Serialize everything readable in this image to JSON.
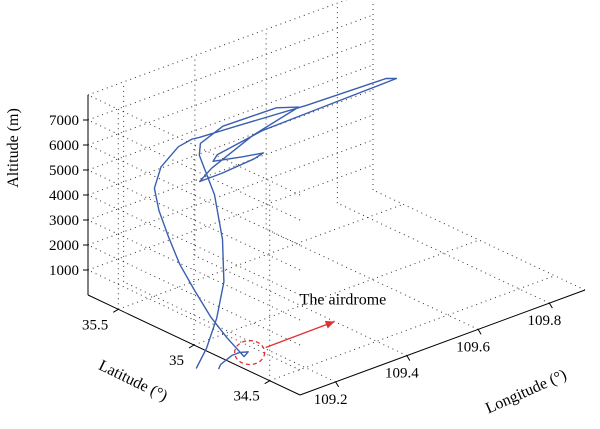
{
  "chart_data": {
    "type": "line",
    "projection": "3d",
    "title": "",
    "xlabel": "Longitude (°)",
    "ylabel": "Latitude (°)",
    "zlabel": "Altitude (m)",
    "x_ticks": [
      "109.2",
      "109.4",
      "109.6",
      "109.8"
    ],
    "y_ticks": [
      "34.5",
      "35",
      "35.5"
    ],
    "z_ticks": [
      "1000",
      "2000",
      "3000",
      "4000",
      "5000",
      "6000",
      "7000"
    ],
    "grid": true,
    "series": [
      {
        "color": "#3a5fb0",
        "points": [
          [
            109.05,
            34.72,
            100
          ],
          [
            109.06,
            34.73,
            200
          ],
          [
            109.1,
            34.75,
            300
          ],
          [
            109.13,
            34.77,
            200
          ],
          [
            109.15,
            34.76,
            150
          ],
          [
            109.13,
            34.74,
            120
          ],
          [
            109.1,
            34.78,
            900
          ],
          [
            109.07,
            34.82,
            1800
          ],
          [
            109.05,
            34.88,
            2800
          ],
          [
            109.03,
            34.93,
            3800
          ],
          [
            109.02,
            34.98,
            4800
          ],
          [
            109.01,
            35.02,
            5800
          ],
          [
            109.01,
            35.05,
            6600
          ],
          [
            109.05,
            35.1,
            7100
          ],
          [
            109.12,
            35.15,
            7400
          ],
          [
            109.18,
            35.2,
            7250
          ],
          [
            109.22,
            35.25,
            6950
          ],
          [
            109.35,
            35.3,
            6600
          ],
          [
            109.55,
            35.32,
            6300
          ],
          [
            109.78,
            35.33,
            6150
          ],
          [
            109.8,
            35.31,
            6100
          ],
          [
            109.6,
            35.28,
            6200
          ],
          [
            109.4,
            35.25,
            6300
          ],
          [
            109.25,
            35.2,
            6250
          ],
          [
            109.23,
            35.18,
            6150
          ],
          [
            109.3,
            35.15,
            6050
          ],
          [
            109.35,
            35.13,
            6000
          ],
          [
            109.32,
            35.12,
            5950
          ],
          [
            109.22,
            35.1,
            5950
          ],
          [
            109.15,
            35.08,
            6050
          ],
          [
            109.2,
            35.12,
            6200
          ],
          [
            109.35,
            35.2,
            6500
          ],
          [
            109.5,
            35.25,
            6700
          ],
          [
            109.45,
            35.28,
            6850
          ],
          [
            109.3,
            35.28,
            6900
          ],
          [
            109.22,
            35.24,
            6750
          ],
          [
            109.2,
            35.2,
            6500
          ],
          [
            109.2,
            35.1,
            5200
          ],
          [
            109.18,
            35.0,
            3800
          ],
          [
            109.15,
            34.92,
            2500
          ],
          [
            109.1,
            34.85,
            1500
          ],
          [
            109.05,
            34.8,
            700
          ],
          [
            109.0,
            34.75,
            300
          ]
        ]
      }
    ],
    "annotations": [
      {
        "text": "The airdrome",
        "target": [
          109.15,
          34.75,
          150
        ],
        "color": "#e03030"
      }
    ]
  }
}
